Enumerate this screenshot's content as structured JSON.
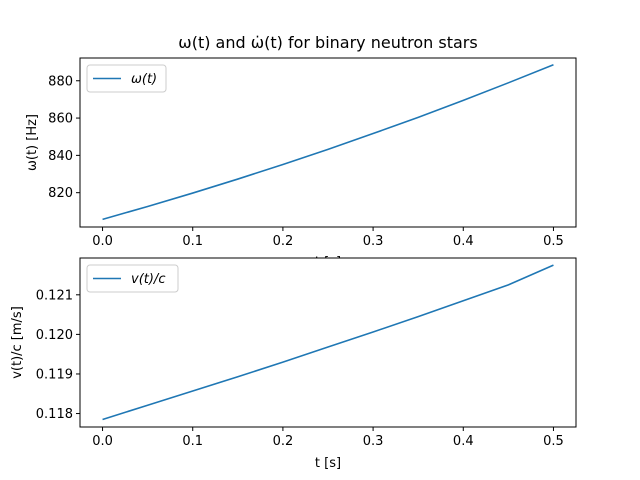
{
  "colors": {
    "line": "#1f77b4",
    "axes": "#000000",
    "legend_border": "#cccccc"
  },
  "chart_data": [
    {
      "type": "line",
      "title": "ω(t) and ω̇(t) for binary neutron stars",
      "xlabel": "t [s]",
      "ylabel": "ω(t) [Hz]",
      "xlim": [
        -0.025,
        0.525
      ],
      "ylim": [
        801.6,
        892.2
      ],
      "xticks": [
        0.0,
        0.1,
        0.2,
        0.3,
        0.4,
        0.5
      ],
      "xtick_labels": [
        "0.0",
        "0.1",
        "0.2",
        "0.3",
        "0.4",
        "0.5"
      ],
      "yticks": [
        820,
        840,
        860,
        880
      ],
      "ytick_labels": [
        "820",
        "840",
        "860",
        "880"
      ],
      "legend": {
        "placement": "top-left",
        "entries": [
          "ω(t)"
        ]
      },
      "series": [
        {
          "name": "ω(t)",
          "x": [
            0.0,
            0.05,
            0.1,
            0.15,
            0.2,
            0.25,
            0.3,
            0.35,
            0.4,
            0.45,
            0.5
          ],
          "y": [
            805.7,
            812.6,
            819.8,
            827.3,
            835.1,
            843.2,
            851.7,
            860.4,
            869.5,
            878.9,
            888.6
          ]
        }
      ]
    },
    {
      "type": "line",
      "title": "",
      "xlabel": "t [s]",
      "ylabel": "v(t)/c [m/s]",
      "xlim": [
        -0.025,
        0.525
      ],
      "ylim": [
        0.11766,
        0.12193
      ],
      "xticks": [
        0.0,
        0.1,
        0.2,
        0.3,
        0.4,
        0.5
      ],
      "xtick_labels": [
        "0.0",
        "0.1",
        "0.2",
        "0.3",
        "0.4",
        "0.5"
      ],
      "yticks": [
        0.118,
        0.119,
        0.12,
        0.121
      ],
      "ytick_labels": [
        "0.118",
        "0.119",
        "0.120",
        "0.121"
      ],
      "legend": {
        "placement": "top-left",
        "entries": [
          "v(t)/c"
        ]
      },
      "series": [
        {
          "name": "v(t)/c",
          "x": [
            0.0,
            0.05,
            0.1,
            0.15,
            0.2,
            0.25,
            0.3,
            0.35,
            0.4,
            0.45,
            0.5
          ],
          "y": [
            0.11785,
            0.11821,
            0.11857,
            0.11893,
            0.1193,
            0.11968,
            0.12006,
            0.12045,
            0.12085,
            0.12125,
            0.12175
          ]
        }
      ]
    }
  ]
}
